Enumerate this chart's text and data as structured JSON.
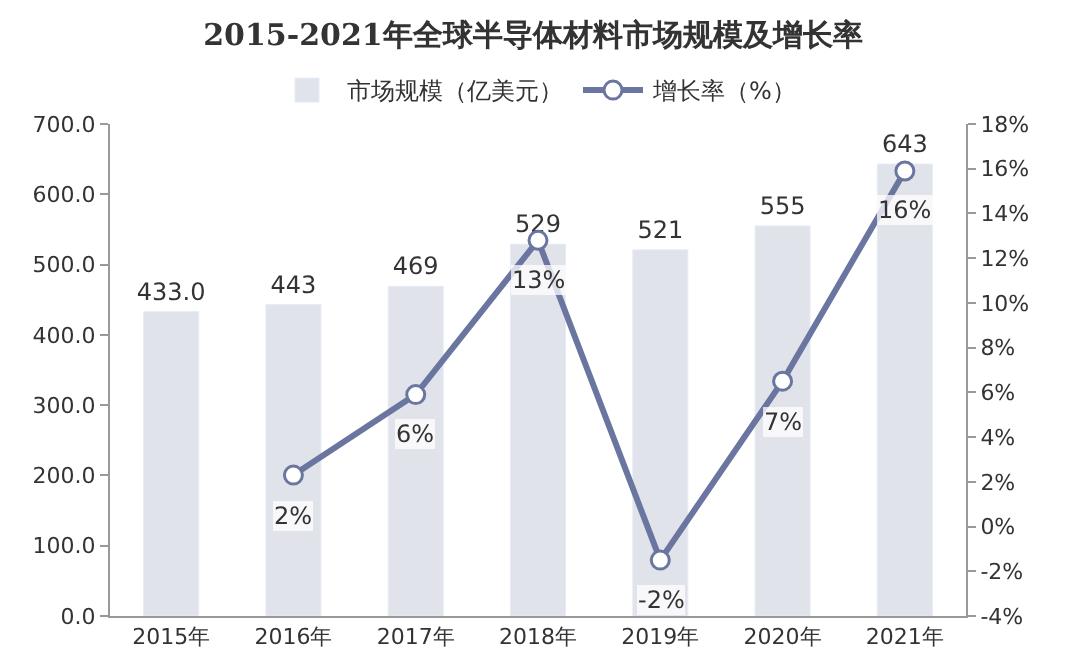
{
  "chart_data": {
    "type": "bar",
    "title": "2015-2021年全球半导体材料市场规模及增长率",
    "categories": [
      "2015年",
      "2016年",
      "2017年",
      "2018年",
      "2019年",
      "2020年",
      "2021年"
    ],
    "series": [
      {
        "name": "市场规模（亿美元）",
        "color": "#e1e3ea",
        "values": [
          433.0,
          443,
          469,
          529,
          521,
          555,
          643
        ],
        "value_labels": [
          "433.0",
          "443",
          "469",
          "529",
          "521",
          "555",
          "643"
        ]
      },
      {
        "name": "增长率（%）",
        "type": "line",
        "axis": "y2",
        "color": "#6b76a0",
        "marker": "circle",
        "values": [
          null,
          2.3,
          5.9,
          12.8,
          -1.5,
          6.5,
          15.9
        ],
        "value_labels": [
          null,
          "2%",
          "6%",
          "13%",
          "-2%",
          "7%",
          "16%"
        ]
      }
    ],
    "ylim": [
      0,
      700
    ],
    "yticks": [
      {
        "value": 0,
        "label": "0.0"
      },
      {
        "value": 100,
        "label": "100.0"
      },
      {
        "value": 200,
        "label": "200.0"
      },
      {
        "value": 300,
        "label": "300.0"
      },
      {
        "value": 400,
        "label": "400.0"
      },
      {
        "value": 500,
        "label": "500.0"
      },
      {
        "value": 600,
        "label": "600.0"
      },
      {
        "value": 700,
        "label": "700.0"
      }
    ],
    "y2lim": [
      -4,
      18
    ],
    "y2ticks": [
      {
        "value": -4,
        "label": "-4%"
      },
      {
        "value": -2,
        "label": "-2%"
      },
      {
        "value": 0,
        "label": "0%"
      },
      {
        "value": 2,
        "label": "2%"
      },
      {
        "value": 4,
        "label": "4%"
      },
      {
        "value": 6,
        "label": "6%"
      },
      {
        "value": 8,
        "label": "8%"
      },
      {
        "value": 10,
        "label": "10%"
      },
      {
        "value": 12,
        "label": "12%"
      },
      {
        "value": 14,
        "label": "14%"
      },
      {
        "value": 16,
        "label": "16%"
      },
      {
        "value": 18,
        "label": "18%"
      }
    ],
    "legend": "top"
  }
}
